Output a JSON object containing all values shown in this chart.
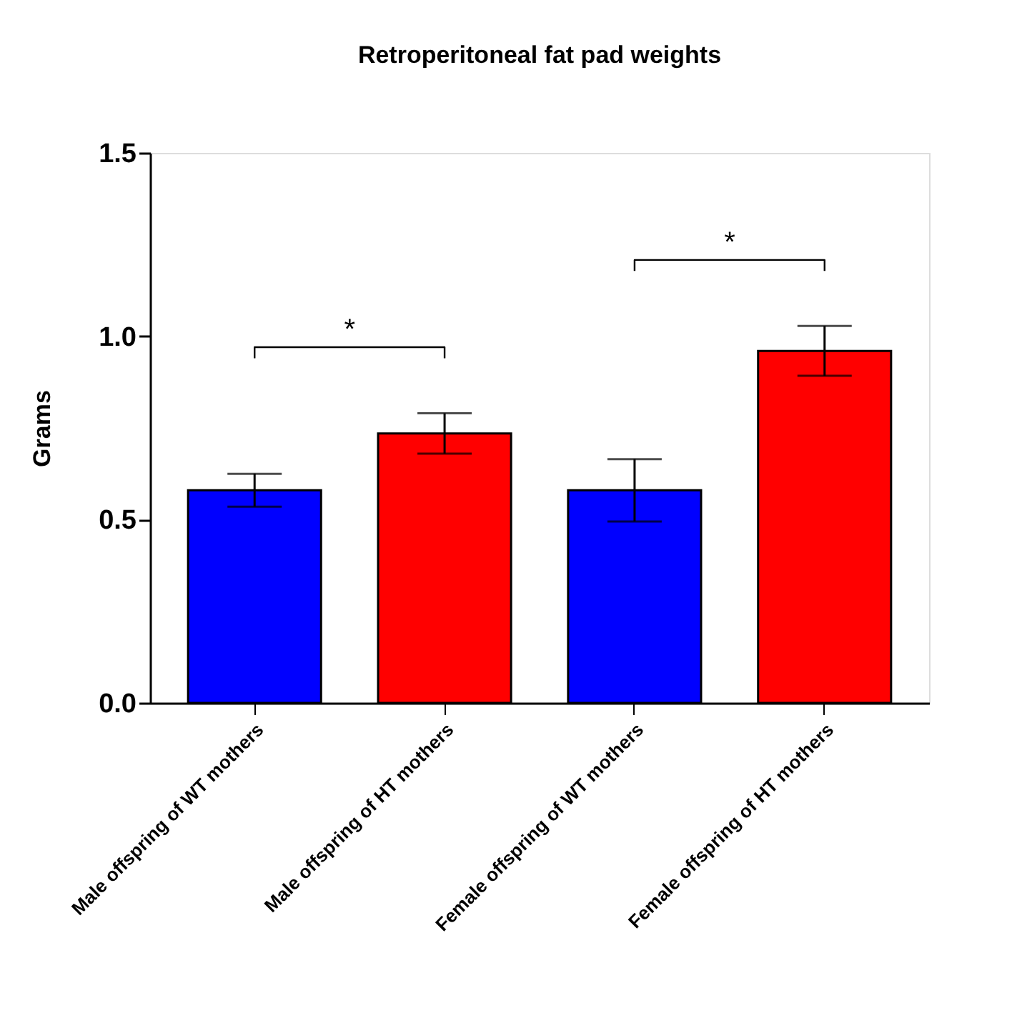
{
  "chart_data": {
    "type": "bar",
    "title": "Retroperitoneal fat pad weights",
    "ylabel": "Grams",
    "categories": [
      "Male offspring of WT mothers",
      "Male offspring of HT mothers",
      "Female offspring of WT mothers",
      "Female offspring of HT mothers"
    ],
    "values": [
      0.58,
      0.735,
      0.58,
      0.96
    ],
    "colors": [
      "#0000ff",
      "#ff0000",
      "#0000ff",
      "#ff0000"
    ],
    "errors": [
      0.045,
      0.055,
      0.085,
      0.068
    ],
    "ylim": [
      0,
      1.5
    ],
    "yticks": [
      {
        "value": 0,
        "label": "0.0"
      },
      {
        "value": 0.5,
        "label": "0.5"
      },
      {
        "value": 1,
        "label": "1.0"
      },
      {
        "value": 1.5,
        "label": "1.5"
      }
    ],
    "annotations": [
      "*",
      "*"
    ],
    "grid": false
  }
}
